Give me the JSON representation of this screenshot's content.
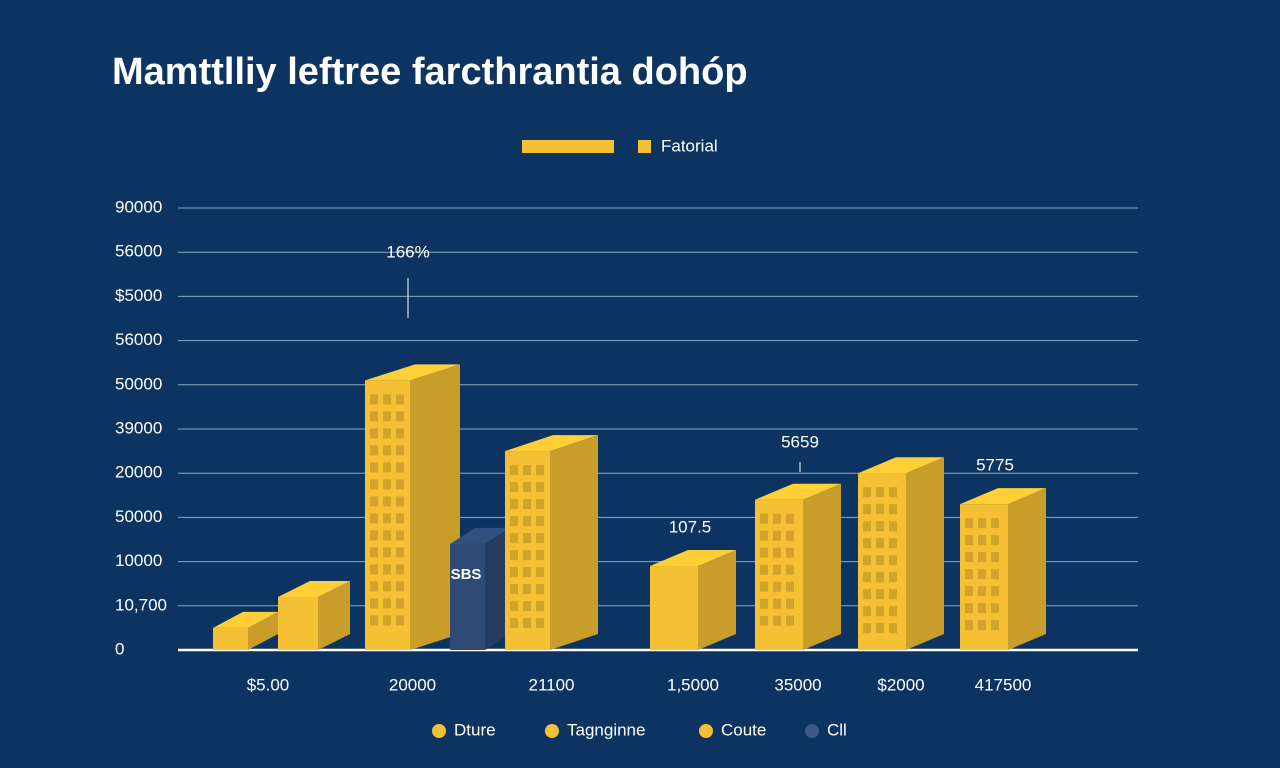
{
  "chart_data": {
    "type": "bar3d",
    "title": "Mamttlliy leftree farcthrantia dohóp",
    "categories": [
      null,
      "$5.00",
      "20000",
      null,
      "21100",
      "1,5000",
      "35000",
      "$2000",
      "417500"
    ],
    "values": [
      0.5,
      1.2,
      6.1,
      2.4,
      4.5,
      1.9,
      3.4,
      4.0,
      3.3
    ],
    "colors": [
      "#f5c033",
      "#f5c033",
      "#f5c033",
      "#2e4a75",
      "#f5c033",
      "#f5c033",
      "#f5c033",
      "#f5c033",
      "#f5c033"
    ],
    "ylim": [
      0,
      10
    ],
    "yticks": [
      {
        "value": 0,
        "label": "0"
      },
      {
        "value": 1,
        "label": "10,700"
      },
      {
        "value": 2,
        "label": "10000"
      },
      {
        "value": 3,
        "label": "50000"
      },
      {
        "value": 4,
        "label": "20000"
      },
      {
        "value": 5,
        "label": "39000"
      },
      {
        "value": 6,
        "label": "50000"
      },
      {
        "value": 7,
        "label": "56000"
      },
      {
        "value": 8,
        "label": "$5000"
      },
      {
        "value": 9,
        "label": "56000"
      },
      {
        "value": 10,
        "label": "90000"
      }
    ],
    "grid": true,
    "annotations": [
      "166%",
      "107.5",
      "5659",
      "5775"
    ],
    "mark_label": "SBS",
    "top_legend": [
      {
        "name": "Fatorial",
        "color": "#f5c033"
      }
    ],
    "legend": [
      {
        "name": "Dture",
        "color": "#f5c033"
      },
      {
        "name": "Tagnginne",
        "color": "#f5c033"
      },
      {
        "name": "Coute",
        "color": "#f5c033"
      },
      {
        "name": "Cll",
        "color": "#3d5a85"
      }
    ]
  }
}
